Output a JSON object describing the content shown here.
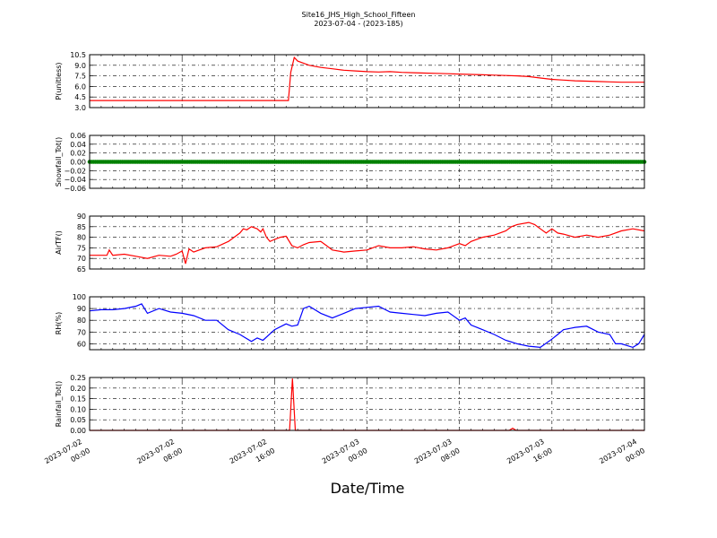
{
  "figure": {
    "title_line1": "Site16_JHS_High_School_Fifteen",
    "title_line2": "2023-07-04 - (2023-185)",
    "xlabel": "Date/Time"
  },
  "chart_data": [
    {
      "type": "line",
      "ylabel": "P(unitless)",
      "color": "#ff0000",
      "ylim": [
        3.0,
        10.5
      ],
      "yticks": [
        3.0,
        4.5,
        6.0,
        7.5,
        9.0,
        10.5
      ],
      "ytick_labels": [
        "3.0",
        "4.5",
        "6.0",
        "7.5",
        "9.0",
        "10.5"
      ],
      "grid": true,
      "x": [
        0,
        3,
        6,
        9,
        12,
        15,
        17.2,
        17.4,
        17.7,
        18,
        19,
        20,
        21,
        22,
        23,
        24,
        25,
        26,
        27,
        28,
        29,
        30,
        31,
        32,
        33,
        34,
        35,
        36,
        37,
        38,
        39,
        40,
        41,
        42,
        43,
        44,
        45,
        46,
        47,
        48
      ],
      "values": [
        4.0,
        4.0,
        4.0,
        4.0,
        4.0,
        4.0,
        4.0,
        8.0,
        10.1,
        9.6,
        9.0,
        8.7,
        8.5,
        8.3,
        8.2,
        8.1,
        8.05,
        8.1,
        8.0,
        7.95,
        7.9,
        7.85,
        7.8,
        7.75,
        7.7,
        7.65,
        7.6,
        7.55,
        7.5,
        7.4,
        7.2,
        7.0,
        6.9,
        6.8,
        6.75,
        6.7,
        6.65,
        6.6,
        6.6,
        6.6
      ]
    },
    {
      "type": "scatter",
      "ylabel": "Snowfall_Tot()",
      "color": "#008000",
      "ylim": [
        -0.06,
        0.06
      ],
      "yticks": [
        -0.06,
        -0.04,
        -0.02,
        0.0,
        0.02,
        0.04,
        0.06
      ],
      "ytick_labels": [
        "−0.06",
        "−0.04",
        "−0.02",
        "0.00",
        "0.02",
        "0.04",
        "0.06"
      ],
      "grid": true,
      "x": [
        0,
        0.5,
        1,
        1.5,
        2,
        2.5,
        3,
        3.5,
        4,
        4.5,
        5,
        5.5,
        6,
        6.5,
        7,
        7.5,
        8,
        8.5,
        9,
        9.5,
        10,
        10.5,
        11,
        11.5,
        12,
        12.5,
        13,
        13.5,
        14,
        14.5,
        15,
        15.5,
        16,
        16.5,
        17,
        17.5,
        18,
        18.5,
        19,
        19.5,
        20,
        20.5,
        21,
        21.5,
        22,
        22.5,
        23,
        23.5,
        24,
        24.5,
        25,
        25.5,
        26,
        26.5,
        27,
        27.5,
        28,
        28.5,
        29,
        29.5,
        30,
        30.5,
        31,
        31.5,
        32,
        32.5,
        33,
        33.5,
        34,
        34.5,
        35,
        35.5,
        36,
        36.5,
        37,
        37.5,
        38,
        38.5,
        39,
        39.5,
        40,
        40.5,
        41,
        41.5,
        42,
        42.5,
        43,
        43.5,
        44,
        44.5,
        45,
        45.5,
        46,
        46.5,
        47,
        47.5,
        48
      ],
      "values": [
        0,
        0,
        0,
        0,
        0,
        0,
        0,
        0,
        0,
        0,
        0,
        0,
        0,
        0,
        0,
        0,
        0,
        0,
        0,
        0,
        0,
        0,
        0,
        0,
        0,
        0,
        0,
        0,
        0,
        0,
        0,
        0,
        0,
        0,
        0,
        0,
        0,
        0,
        0,
        0,
        0,
        0,
        0,
        0,
        0,
        0,
        0,
        0,
        0,
        0,
        0,
        0,
        0,
        0,
        0,
        0,
        0,
        0,
        0,
        0,
        0,
        0,
        0,
        0,
        0,
        0,
        0,
        0,
        0,
        0,
        0,
        0,
        0,
        0,
        0,
        0,
        0,
        0,
        0,
        0,
        0,
        0,
        0,
        0,
        0,
        0,
        0,
        0,
        0,
        0,
        0,
        0,
        0,
        0,
        0,
        0,
        0
      ]
    },
    {
      "type": "line",
      "ylabel": "AirTF()",
      "color": "#ff0000",
      "ylim": [
        65,
        90
      ],
      "yticks": [
        65,
        70,
        75,
        80,
        85,
        90
      ],
      "ytick_labels": [
        "65",
        "70",
        "75",
        "80",
        "85",
        "90"
      ],
      "grid": true,
      "x": [
        0,
        0.8,
        1.5,
        1.7,
        2,
        3,
        4,
        5,
        6,
        7,
        7.5,
        8,
        8.3,
        8.6,
        9,
        10,
        11,
        12,
        12.5,
        13,
        13.3,
        13.6,
        14,
        14.5,
        14.8,
        15,
        15.3,
        15.6,
        16,
        16.5,
        17,
        17.5,
        18,
        18.5,
        19,
        20,
        20.5,
        21,
        22,
        23,
        24,
        25,
        26,
        27,
        28,
        29,
        30,
        31,
        32,
        32.5,
        33,
        34,
        35,
        36,
        36.5,
        37,
        38,
        38.5,
        39,
        39.5,
        40,
        40.5,
        41,
        42,
        43,
        44,
        45,
        46,
        47,
        48
      ],
      "values": [
        71.5,
        71.5,
        71.5,
        74,
        71.5,
        72,
        71,
        70,
        71.5,
        71,
        72,
        73.5,
        67.5,
        74.5,
        73,
        75,
        75.5,
        78,
        80,
        82,
        84,
        83.5,
        85,
        84,
        82.5,
        84,
        80,
        78,
        79,
        80,
        80.5,
        76,
        75,
        76.5,
        77.5,
        78,
        76,
        74,
        73,
        73.5,
        74,
        76,
        75,
        75,
        75.5,
        74.5,
        74,
        75,
        77,
        76,
        78,
        80,
        81,
        83,
        85,
        86,
        87,
        86,
        84,
        82,
        84,
        82,
        81.5,
        80,
        81,
        80,
        81,
        83,
        84,
        83
      ]
    },
    {
      "type": "line",
      "ylabel": "RH(%)",
      "color": "#0000ff",
      "ylim": [
        55,
        100
      ],
      "yticks": [
        60,
        70,
        80,
        90,
        100
      ],
      "ytick_labels": [
        "60",
        "70",
        "80",
        "90",
        "100"
      ],
      "grid": true,
      "x": [
        0,
        1,
        2,
        3,
        4,
        4.5,
        5,
        6,
        7,
        8,
        9,
        10,
        11,
        12,
        13,
        14,
        14.5,
        15,
        16,
        17,
        17.5,
        18,
        18.5,
        19,
        20,
        21,
        22,
        23,
        24,
        25,
        26,
        27,
        28,
        29,
        30,
        31,
        32,
        32.5,
        33,
        33.5,
        34,
        35,
        36,
        37,
        38,
        39,
        40,
        40.5,
        41,
        42,
        43,
        44,
        45,
        45.5,
        46,
        47,
        47.5,
        48
      ],
      "values": [
        88,
        89,
        89,
        90,
        92,
        94,
        86,
        90,
        87,
        86,
        84,
        80,
        80,
        72,
        68,
        62,
        65,
        63,
        72,
        77,
        75,
        76,
        90,
        92,
        86,
        82,
        86,
        90,
        91,
        92,
        87,
        86,
        85,
        84,
        86,
        87,
        80,
        82,
        76,
        74,
        72,
        68,
        63,
        60,
        58,
        57,
        64,
        68,
        72,
        74,
        75,
        70,
        68,
        60,
        60,
        57,
        60,
        68
      ]
    },
    {
      "type": "line",
      "ylabel": "Rainfall_Tot()",
      "color": "#ff0000",
      "ylim": [
        0.0,
        0.25
      ],
      "yticks": [
        0.0,
        0.05,
        0.1,
        0.15,
        0.2,
        0.25
      ],
      "ytick_labels": [
        "0.00",
        "0.05",
        "0.10",
        "0.15",
        "0.20",
        "0.25"
      ],
      "grid": true,
      "x": [
        0,
        17.0,
        17.3,
        17.55,
        17.8,
        36.3,
        36.6,
        36.9,
        48
      ],
      "values": [
        0,
        0,
        0.0,
        0.245,
        0.0,
        0.0,
        0.01,
        0.0,
        0
      ]
    }
  ],
  "xaxis": {
    "xlim": [
      0,
      48
    ],
    "ticks": [
      0,
      8,
      16,
      24,
      32,
      40,
      48
    ],
    "tick_labels_line1": [
      "2023-07-02",
      "2023-07-02",
      "2023-07-02",
      "2023-07-03",
      "2023-07-03",
      "2023-07-03",
      "2023-07-04"
    ],
    "tick_labels_line2": [
      "00:00",
      "08:00",
      "16:00",
      "00:00",
      "08:00",
      "16:00",
      "00:00"
    ]
  }
}
